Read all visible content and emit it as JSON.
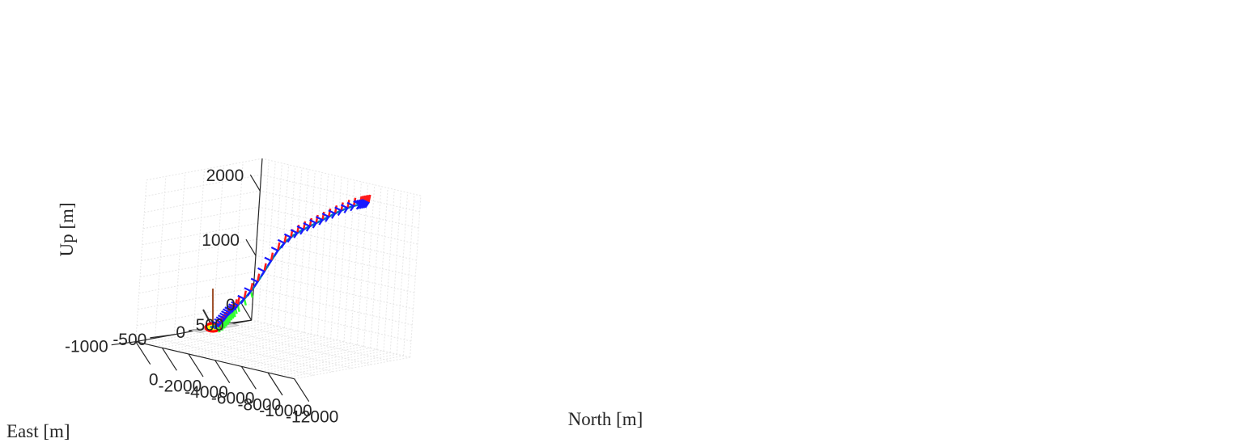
{
  "chart_data": {
    "type": "line3d",
    "title": "",
    "xlabel": "North [m]",
    "ylabel": "East [m]",
    "zlabel": "Up [m]",
    "x_ticks": [
      0,
      -2000,
      -4000,
      -6000,
      -8000,
      -10000,
      -12000
    ],
    "y_ticks": [
      500,
      0,
      -500,
      -1000
    ],
    "z_ticks": [
      0,
      1000,
      2000
    ],
    "x_tick_labels": [
      "0",
      "-2000",
      "-4000",
      "-6000",
      "-8000",
      "-10000",
      "-12000"
    ],
    "y_tick_labels": [
      "500",
      "0",
      "-500",
      "-1000"
    ],
    "z_tick_labels": [
      "0",
      "1000",
      "2000"
    ],
    "xlim": [
      0,
      -12000
    ],
    "ylim": [
      -1000,
      500
    ],
    "zlim": [
      0,
      2500
    ],
    "grid": true,
    "series": [
      {
        "color": "#0072bd",
        "points": [
          [
            200,
            0,
            0
          ],
          [
            0,
            0,
            0
          ],
          [
            -400,
            30,
            90
          ],
          [
            -800,
            20,
            190
          ],
          [
            -1200,
            0,
            300
          ],
          [
            -1800,
            -10,
            430
          ],
          [
            -2400,
            -20,
            580
          ],
          [
            -3000,
            -30,
            760
          ],
          [
            -3600,
            -40,
            980
          ],
          [
            -4200,
            -50,
            1210
          ],
          [
            -4800,
            -60,
            1430
          ],
          [
            -5400,
            -70,
            1600
          ],
          [
            -6000,
            -80,
            1730
          ],
          [
            -6600,
            -90,
            1830
          ],
          [
            -7200,
            -100,
            1920
          ],
          [
            -7800,
            -110,
            2010
          ],
          [
            -8400,
            -120,
            2100
          ],
          [
            -9000,
            -130,
            2190
          ],
          [
            -9600,
            -140,
            2280
          ],
          [
            -10200,
            -150,
            2360
          ],
          [
            -10800,
            -160,
            2430
          ],
          [
            -11400,
            -170,
            2490
          ],
          [
            -12000,
            -180,
            2540
          ]
        ]
      }
    ],
    "attitude_marker_colors": {
      "green": "#33ff33",
      "red": "#ff1a1a",
      "blue": "#1a1aff"
    },
    "launch_site_colors": {
      "ring": "#ff0000",
      "fill": "#ffff00",
      "pad": "#d9d9d9"
    }
  }
}
